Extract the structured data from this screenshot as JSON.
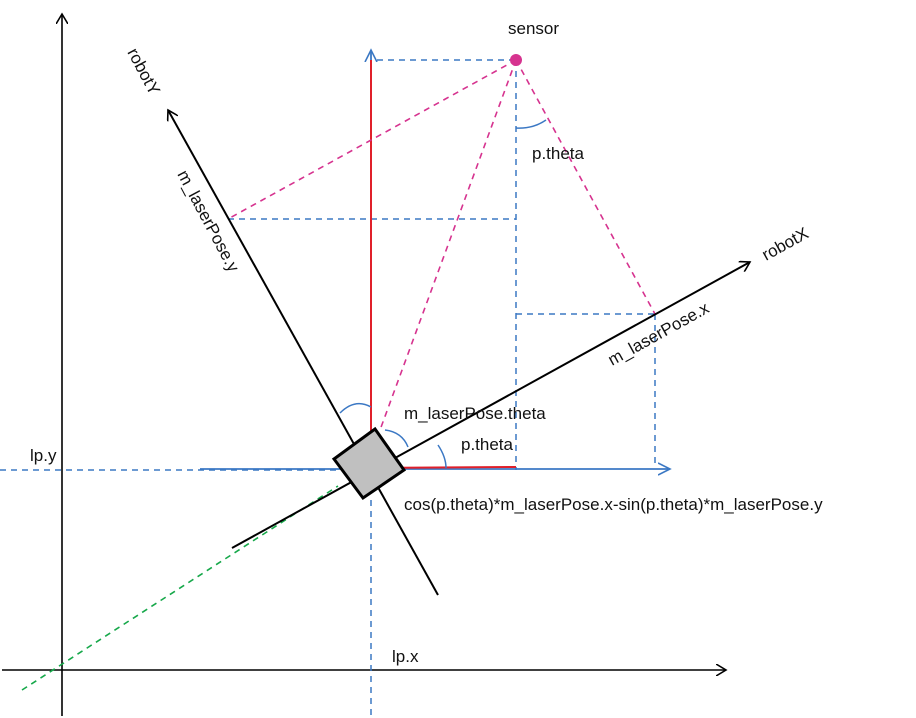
{
  "labels": {
    "sensor": "sensor",
    "robot_y": "robotY",
    "robot_x": "robotX",
    "laser_pose_y": "m_laserPose.y",
    "laser_pose_x": "m_laserPose.x",
    "p_theta_top": "p.theta",
    "laser_pose_theta": "m_laserPose.theta",
    "p_theta_bottom": "p.theta",
    "cos_formula": "cos(p.theta)*m_laserPose.x-sin(p.theta)*m_laserPose.y",
    "lp_y": "lp.y",
    "lp_x": "lp.x"
  },
  "colors": {
    "axis": "#000000",
    "blue": "#3b78c4",
    "red": "#e0202a",
    "magenta": "#d6338f",
    "green": "#16a84a",
    "robot_fill": "#c0c0c0"
  }
}
